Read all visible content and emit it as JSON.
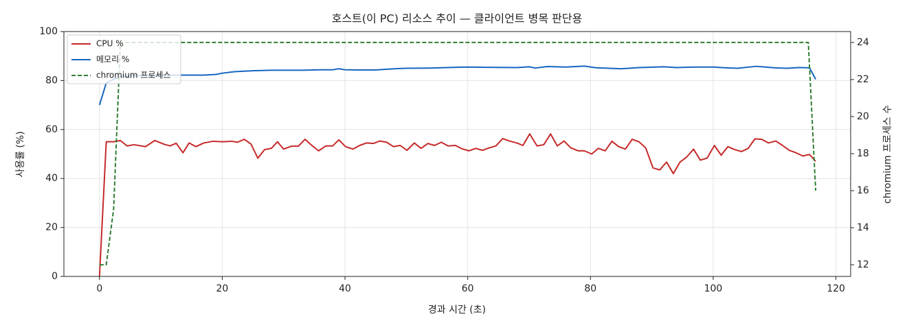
{
  "chart_data": {
    "type": "line",
    "title": "호스트(이 PC) 리소스 추이 — 클라이언트 병목 판단용",
    "x_label": "경과 시간 (초)",
    "y_label": "사용률 (%)",
    "y2_label": "chromium 프로세스 수",
    "xlim": [
      -5.8,
      122.4
    ],
    "xticks": [
      0,
      20,
      40,
      60,
      80,
      100,
      120
    ],
    "ylim": [
      0,
      100
    ],
    "yticks": [
      0,
      20,
      40,
      60,
      80,
      100
    ],
    "y2lim": [
      11.37,
      24.59
    ],
    "y2ticks": [
      12,
      14,
      16,
      18,
      20,
      22,
      24
    ],
    "grid": true,
    "legend": "upper left",
    "series": [
      {
        "name": "CPU %",
        "color": "#c62828",
        "dash": false,
        "x": [
          0,
          1.1,
          2.3,
          3.4,
          4.5,
          5.6,
          7.5,
          9,
          10.5,
          11.5,
          12.5,
          13.6,
          14.6,
          15.7,
          17,
          18.5,
          20,
          21.5,
          22.5,
          23.6,
          24.7,
          25.8,
          26.9,
          28,
          29,
          30,
          31.3,
          32.4,
          33.5,
          34.6,
          35.7,
          36.9,
          38,
          39,
          40.1,
          41.3,
          42.4,
          43.5,
          44.6,
          45.7,
          46.8,
          47.9,
          49,
          50.1,
          51.3,
          52.4,
          53.5,
          54.6,
          55.7,
          56.8,
          58,
          59,
          60.2,
          61.3,
          62.4,
          63.5,
          64.6,
          65.7,
          66.8,
          68,
          69,
          70.1,
          71.3,
          72.4,
          73.5,
          74.6,
          75.7,
          76.8,
          78,
          79,
          80.2,
          81.3,
          82.4,
          83.5,
          84.6,
          85.7,
          86.8,
          87.9,
          89,
          90.2,
          91.3,
          92.4,
          93.5,
          94.6,
          95.7,
          96.8,
          97.9,
          99,
          100.2,
          101.3,
          102.4,
          103.5,
          104.6,
          105.7,
          106.8,
          107.9,
          109,
          110.2,
          111.3,
          112.4,
          113.5,
          114.6,
          115.7,
          116.7
        ],
        "values": [
          0,
          55,
          55,
          55.5,
          53.3,
          53.8,
          53,
          55.5,
          54,
          53.3,
          54.4,
          50.5,
          54.5,
          53,
          54.5,
          55.2,
          55,
          55.2,
          54.8,
          56,
          54,
          48.3,
          51.8,
          52.3,
          55,
          52,
          53.2,
          53.2,
          56,
          53.5,
          51.3,
          53.3,
          53.3,
          55.8,
          53,
          52,
          53.5,
          54.5,
          54.3,
          55.3,
          54.8,
          53,
          53.5,
          51.5,
          54.5,
          52.3,
          54.3,
          53.5,
          54.8,
          53.3,
          53.5,
          52.2,
          51.3,
          52.3,
          51.5,
          52.5,
          53.3,
          56.3,
          55.3,
          54.5,
          53.5,
          58.2,
          53.3,
          53.8,
          58.2,
          53.3,
          55.3,
          52.5,
          51.3,
          51.3,
          50,
          52.3,
          51.3,
          55.2,
          53,
          52,
          56,
          55,
          52.5,
          44.3,
          43.5,
          46.7,
          42,
          46.7,
          48.8,
          52,
          47.5,
          48.3,
          53.5,
          49.5,
          53,
          51.8,
          51,
          52.3,
          56.2,
          56,
          54.5,
          55.3,
          53.5,
          51.5,
          50.5,
          49.2,
          49.8,
          47
        ]
      },
      {
        "name": "메모리 %",
        "color": "#1565c0",
        "dash": false,
        "x": [
          0,
          1.1,
          2.3,
          3.4,
          5.6,
          10,
          13,
          17,
          19,
          20,
          22,
          25,
          28,
          33,
          36,
          38,
          39,
          40,
          42,
          45,
          48,
          50,
          54,
          58,
          60,
          63,
          68,
          70,
          71,
          73,
          76,
          79,
          81,
          83,
          85,
          88,
          92,
          94,
          97,
          100,
          102,
          104,
          107,
          108,
          110,
          112,
          114,
          115.7,
          116.7
        ],
        "values": [
          70,
          79,
          80.5,
          81.5,
          82,
          82.2,
          82.2,
          82.2,
          82.5,
          83,
          83.6,
          84,
          84.2,
          84.2,
          84.4,
          84.4,
          84.8,
          84.4,
          84.3,
          84.3,
          84.8,
          85,
          85.1,
          85.4,
          85.5,
          85.4,
          85.3,
          85.6,
          85.1,
          85.7,
          85.5,
          85.9,
          85.2,
          85,
          84.8,
          85.3,
          85.6,
          85.3,
          85.5,
          85.5,
          85.2,
          85,
          85.8,
          85.6,
          85.2,
          85,
          85.3,
          85.2,
          80.5
        ]
      },
      {
        "name": "chromium 프로세스",
        "color": "#2e7d32",
        "dash": true,
        "axis": "y2",
        "x": [
          0,
          1.1,
          2.3,
          3.4,
          115.5,
          115.8,
          116.7
        ],
        "values": [
          12,
          12,
          15,
          24,
          24,
          22,
          16
        ]
      }
    ]
  }
}
